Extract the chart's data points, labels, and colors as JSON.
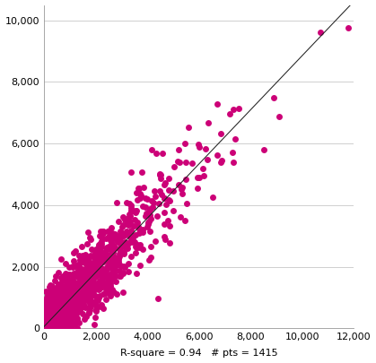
{
  "xlabel_text": "R-square = 0.94   # pts = 1415",
  "xlim": [
    0,
    12000
  ],
  "ylim": [
    0,
    10500
  ],
  "xticks": [
    0,
    2000,
    4000,
    6000,
    8000,
    10000,
    12000
  ],
  "yticks": [
    0,
    2000,
    4000,
    6000,
    8000,
    10000
  ],
  "marker_color": "#CC0077",
  "marker_size": 5,
  "line_color": "#222222",
  "n_points": 1415,
  "r_square": 0.94,
  "background_color": "#ffffff",
  "grid_color": "#c8c8c8",
  "tick_fontsize": 8,
  "slope": 0.88,
  "intercept": 50,
  "residual_std": 420,
  "x_scale": 1500
}
